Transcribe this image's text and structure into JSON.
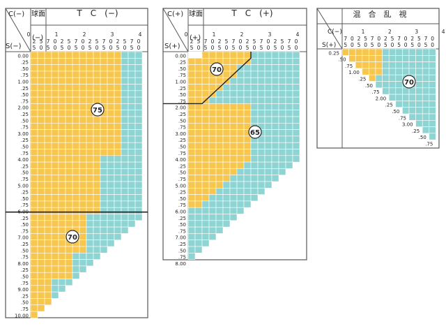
{
  "colors": {
    "yellow": "#f6c64e",
    "cyan": "#8ed4d2",
    "grid": "#ffffff",
    "frame": "#555555",
    "line": "#222222",
    "paper": "#ffffff"
  },
  "tc_minus": {
    "header_cyl": "C(−)",
    "header_sph": "S(−)",
    "header_sign": "(−)",
    "col_ball": "球面",
    "title": "T　C　(−)",
    "integer_ticks": [
      "0",
      "1",
      "2",
      "3",
      "4"
    ],
    "digits_top": [
      "2",
      "5",
      "7",
      "0",
      "2",
      "5",
      "7",
      "0",
      "2",
      "5",
      "7",
      "0",
      "2",
      "5",
      "7",
      "0"
    ],
    "digits_bot": [
      "5",
      "0",
      "5",
      "0",
      "5",
      "0",
      "5",
      "0",
      "5",
      "0",
      "5",
      "0",
      "5",
      "0",
      "5",
      "0"
    ],
    "row_labels": [
      "0.00",
      ".25",
      ".50",
      ".75",
      "1.00",
      ".25",
      ".50",
      ".75",
      "2.00",
      ".25",
      ".50",
      ".75",
      "3.00",
      ".25",
      ".50",
      ".75",
      "4.00",
      ".25",
      ".50",
      ".75",
      "5.00",
      ".25",
      ".50",
      ".75",
      "6.00",
      ".25",
      ".50",
      ".75",
      "7.00",
      ".25",
      ".50",
      ".75",
      "8.00",
      ".25",
      ".50",
      ".75",
      "9.00",
      ".25",
      ".50",
      ".75",
      "10.00"
    ],
    "badge_top": "75",
    "badge_bottom": "70"
  },
  "tc_plus": {
    "header_cyl": "C(+)",
    "header_sph": "S(+)",
    "header_sign": "(+)",
    "col_ball": "球面",
    "title": "T　C　(+)",
    "integer_ticks": [
      "0",
      "1",
      "2",
      "3",
      "4"
    ],
    "digits_top": [
      "2",
      "5",
      "7",
      "0",
      "2",
      "5",
      "7",
      "0",
      "2",
      "5",
      "7",
      "0",
      "2",
      "5",
      "7",
      "0"
    ],
    "digits_bot": [
      "5",
      "0",
      "5",
      "0",
      "5",
      "0",
      "5",
      "0",
      "5",
      "0",
      "5",
      "0",
      "5",
      "0",
      "5",
      "0"
    ],
    "row_labels": [
      "0.00",
      ".25",
      ".50",
      ".75",
      "1.00",
      ".25",
      ".50",
      ".75",
      "2.00",
      ".25",
      ".50",
      ".75",
      "3.00",
      ".25",
      ".50",
      ".75",
      "4.00",
      ".25",
      ".50",
      ".75",
      "5.00",
      ".25",
      ".50",
      ".75",
      "6.00",
      ".25",
      ".50",
      ".75",
      "7.00",
      ".25",
      ".50",
      ".75",
      "8.00"
    ],
    "badge_top": "70",
    "badge_bottom": "65"
  },
  "mixed": {
    "title": "混　合　乱　視",
    "header_cyl": "C(−)",
    "header_sph": "S(+)",
    "integer_ticks": [
      "1",
      "2",
      "3",
      "4"
    ],
    "digits_top": [
      "2",
      "5",
      "7",
      "0",
      "2",
      "5",
      "7",
      "0",
      "2",
      "5",
      "7",
      "0",
      "2",
      "5",
      "7",
      "0"
    ],
    "digits_bot": [
      "5",
      "0",
      "5",
      "0",
      "5",
      "0",
      "5",
      "0",
      "5",
      "0",
      "5",
      "0",
      "5",
      "0",
      "5",
      "0"
    ],
    "row_labels": [
      "0.25",
      ".50",
      ".75",
      "1.00",
      ".25",
      ".50",
      ".75",
      "2.00",
      ".25",
      ".50",
      ".75",
      "3.00",
      ".25",
      ".50",
      ".75"
    ],
    "badge": "70"
  }
}
